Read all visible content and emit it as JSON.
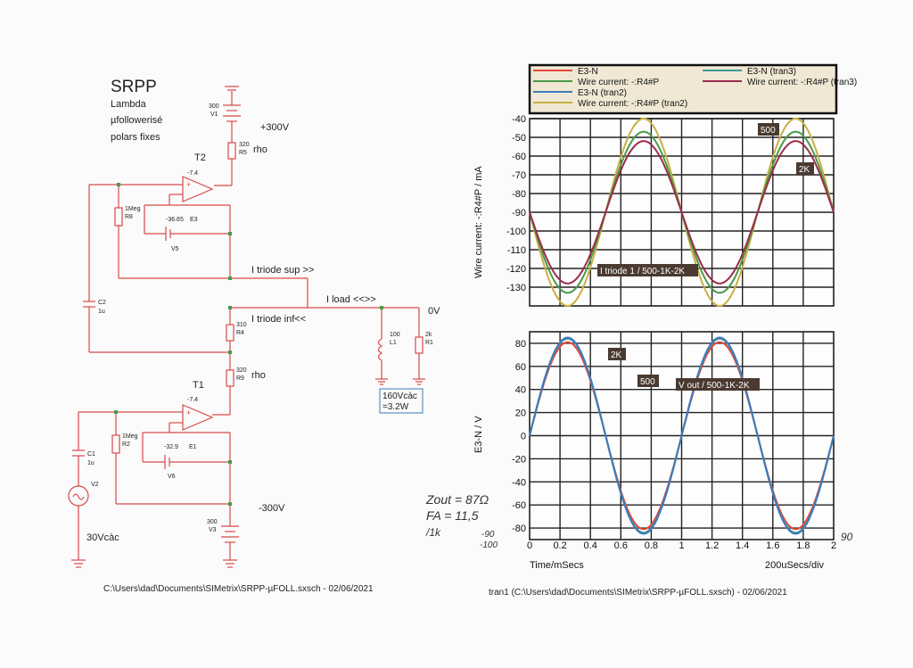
{
  "schematic": {
    "title": "SRPP",
    "subtitle1": "Lambda",
    "subtitle2": "µfollowerisé",
    "subtitle3": "polars fixes",
    "v1_value": "300",
    "v1_name": "V1",
    "supply_pos": "+300V",
    "r5_value": "320",
    "r5_name": "R5",
    "r5_note": "rho",
    "t2_label": "T2",
    "e3_gain": "-7.4",
    "r8_value": "1Meg",
    "r8_name": "R8",
    "v5_value": "-36.65",
    "e3_name": "E3",
    "v5_name": "V5",
    "i_triode_sup": "I triode sup  >>",
    "c2_name": "C2",
    "c2_value": "1u",
    "i_load": "I load <<>>",
    "zero_v": "0V",
    "r4_value": "310",
    "r4_name": "R4",
    "i_triode_inf": "I triode inf<<",
    "l1_value": "100",
    "l1_name": "L1",
    "r1_value": "2k",
    "r1_name": "R1",
    "r9_value": "320",
    "r9_name": "R9",
    "r9_note": "rho",
    "t1_label": "T1",
    "e1_gain": "-7.4",
    "box_line1": "160Vcàc",
    "box_line2": "=3.2W",
    "r2_value": "1Meg",
    "r2_name": "R2",
    "v6_value": "-32.9",
    "e1_name": "E1",
    "v6_name": "V6",
    "c1_name": "C1",
    "c1_value": "1u",
    "v2_name": "V2",
    "supply_neg": "-300V",
    "v3_value": "300",
    "v3_name": "V3",
    "source_amp": "30Vcàc",
    "footer": "C:\\Users\\dad\\Documents\\SIMetrix\\SRPP-µFOLL.sxsch - 02/06/2021"
  },
  "handwritten": {
    "line1": "Zout = 87Ω",
    "line2": "FA = 11,5",
    "line3": "/1k",
    "neg90": "-90",
    "neg100": "-100",
    "pos90": "90"
  },
  "colors": {
    "red": "#e8463c",
    "green": "#4a9a4a",
    "blue": "#3c7ac0",
    "teal": "#3a9c94",
    "maroon": "#9c2c4c",
    "gold": "#c8b040",
    "schematic": "#d84a4a"
  },
  "legend": [
    {
      "label": "E3-N",
      "color": "#e8463c"
    },
    {
      "label": "E3-N (tran3)",
      "color": "#3a9c94"
    },
    {
      "label": "Wire current: -:R4#P",
      "color": "#4a9a4a"
    },
    {
      "label": "Wire current: -:R4#P (tran3)",
      "color": "#9c2c4c"
    },
    {
      "label": "E3-N (tran2)",
      "color": "#3c7ac0"
    },
    {
      "label": "Wire current: -:R4#P (tran2)",
      "color": "#c8b040"
    }
  ],
  "chart_data": [
    {
      "type": "line",
      "ylabel": "Wire current: -:R4#P / mA",
      "ylim": [
        -140,
        -40
      ],
      "yticks": [
        "-40",
        "-50",
        "-60",
        "-70",
        "-80",
        "-90",
        "-100",
        "-110",
        "-120",
        "-130"
      ],
      "xlim": [
        0,
        2
      ],
      "grid": true,
      "series": [
        {
          "name": "Wire current: -:R4#P (tran2)",
          "color": "#c8b040",
          "center": -90,
          "amplitude": 50
        },
        {
          "name": "Wire current: -:R4#P",
          "color": "#4a9a4a",
          "center": -90,
          "amplitude": 43
        },
        {
          "name": "Wire current: -:R4#P (tran3)",
          "color": "#9c2c4c",
          "center": -90,
          "amplitude": 38
        }
      ],
      "frequency_khz": 1.0,
      "phase_sign": -1,
      "annotations": [
        "500",
        "2K",
        "I triode 1 / 500-1K-2K"
      ]
    },
    {
      "type": "line",
      "ylabel": "E3-N / V",
      "ylim": [
        -90,
        90
      ],
      "yticks": [
        "80",
        "60",
        "40",
        "20",
        "0",
        "-20",
        "-40",
        "-60",
        "-80"
      ],
      "xlim": [
        0,
        2
      ],
      "xticks": [
        "0",
        "0.2",
        "0.4",
        "0.6",
        "0.8",
        "1",
        "1.2",
        "1.4",
        "1.6",
        "1.8",
        "2"
      ],
      "xlabel": "Time/mSecs",
      "xunit": "200uSecs/div",
      "grid": true,
      "series": [
        {
          "name": "E3-N",
          "color": "#e8463c",
          "center": 0,
          "amplitude": 81
        },
        {
          "name": "E3-N (tran3)",
          "color": "#3a9c94",
          "center": 0,
          "amplitude": 84
        },
        {
          "name": "E3-N (tran2)",
          "color": "#3c7ac0",
          "center": 0,
          "amplitude": 85
        }
      ],
      "frequency_khz": 1.0,
      "phase_sign": 1,
      "annotations": [
        "2K",
        "500",
        "V out / 500-1K-2K"
      ]
    }
  ],
  "chart_footer": "tran1 (C:\\Users\\dad\\Documents\\SIMetrix\\SRPP-µFOLL.sxsch) - 02/06/2021"
}
